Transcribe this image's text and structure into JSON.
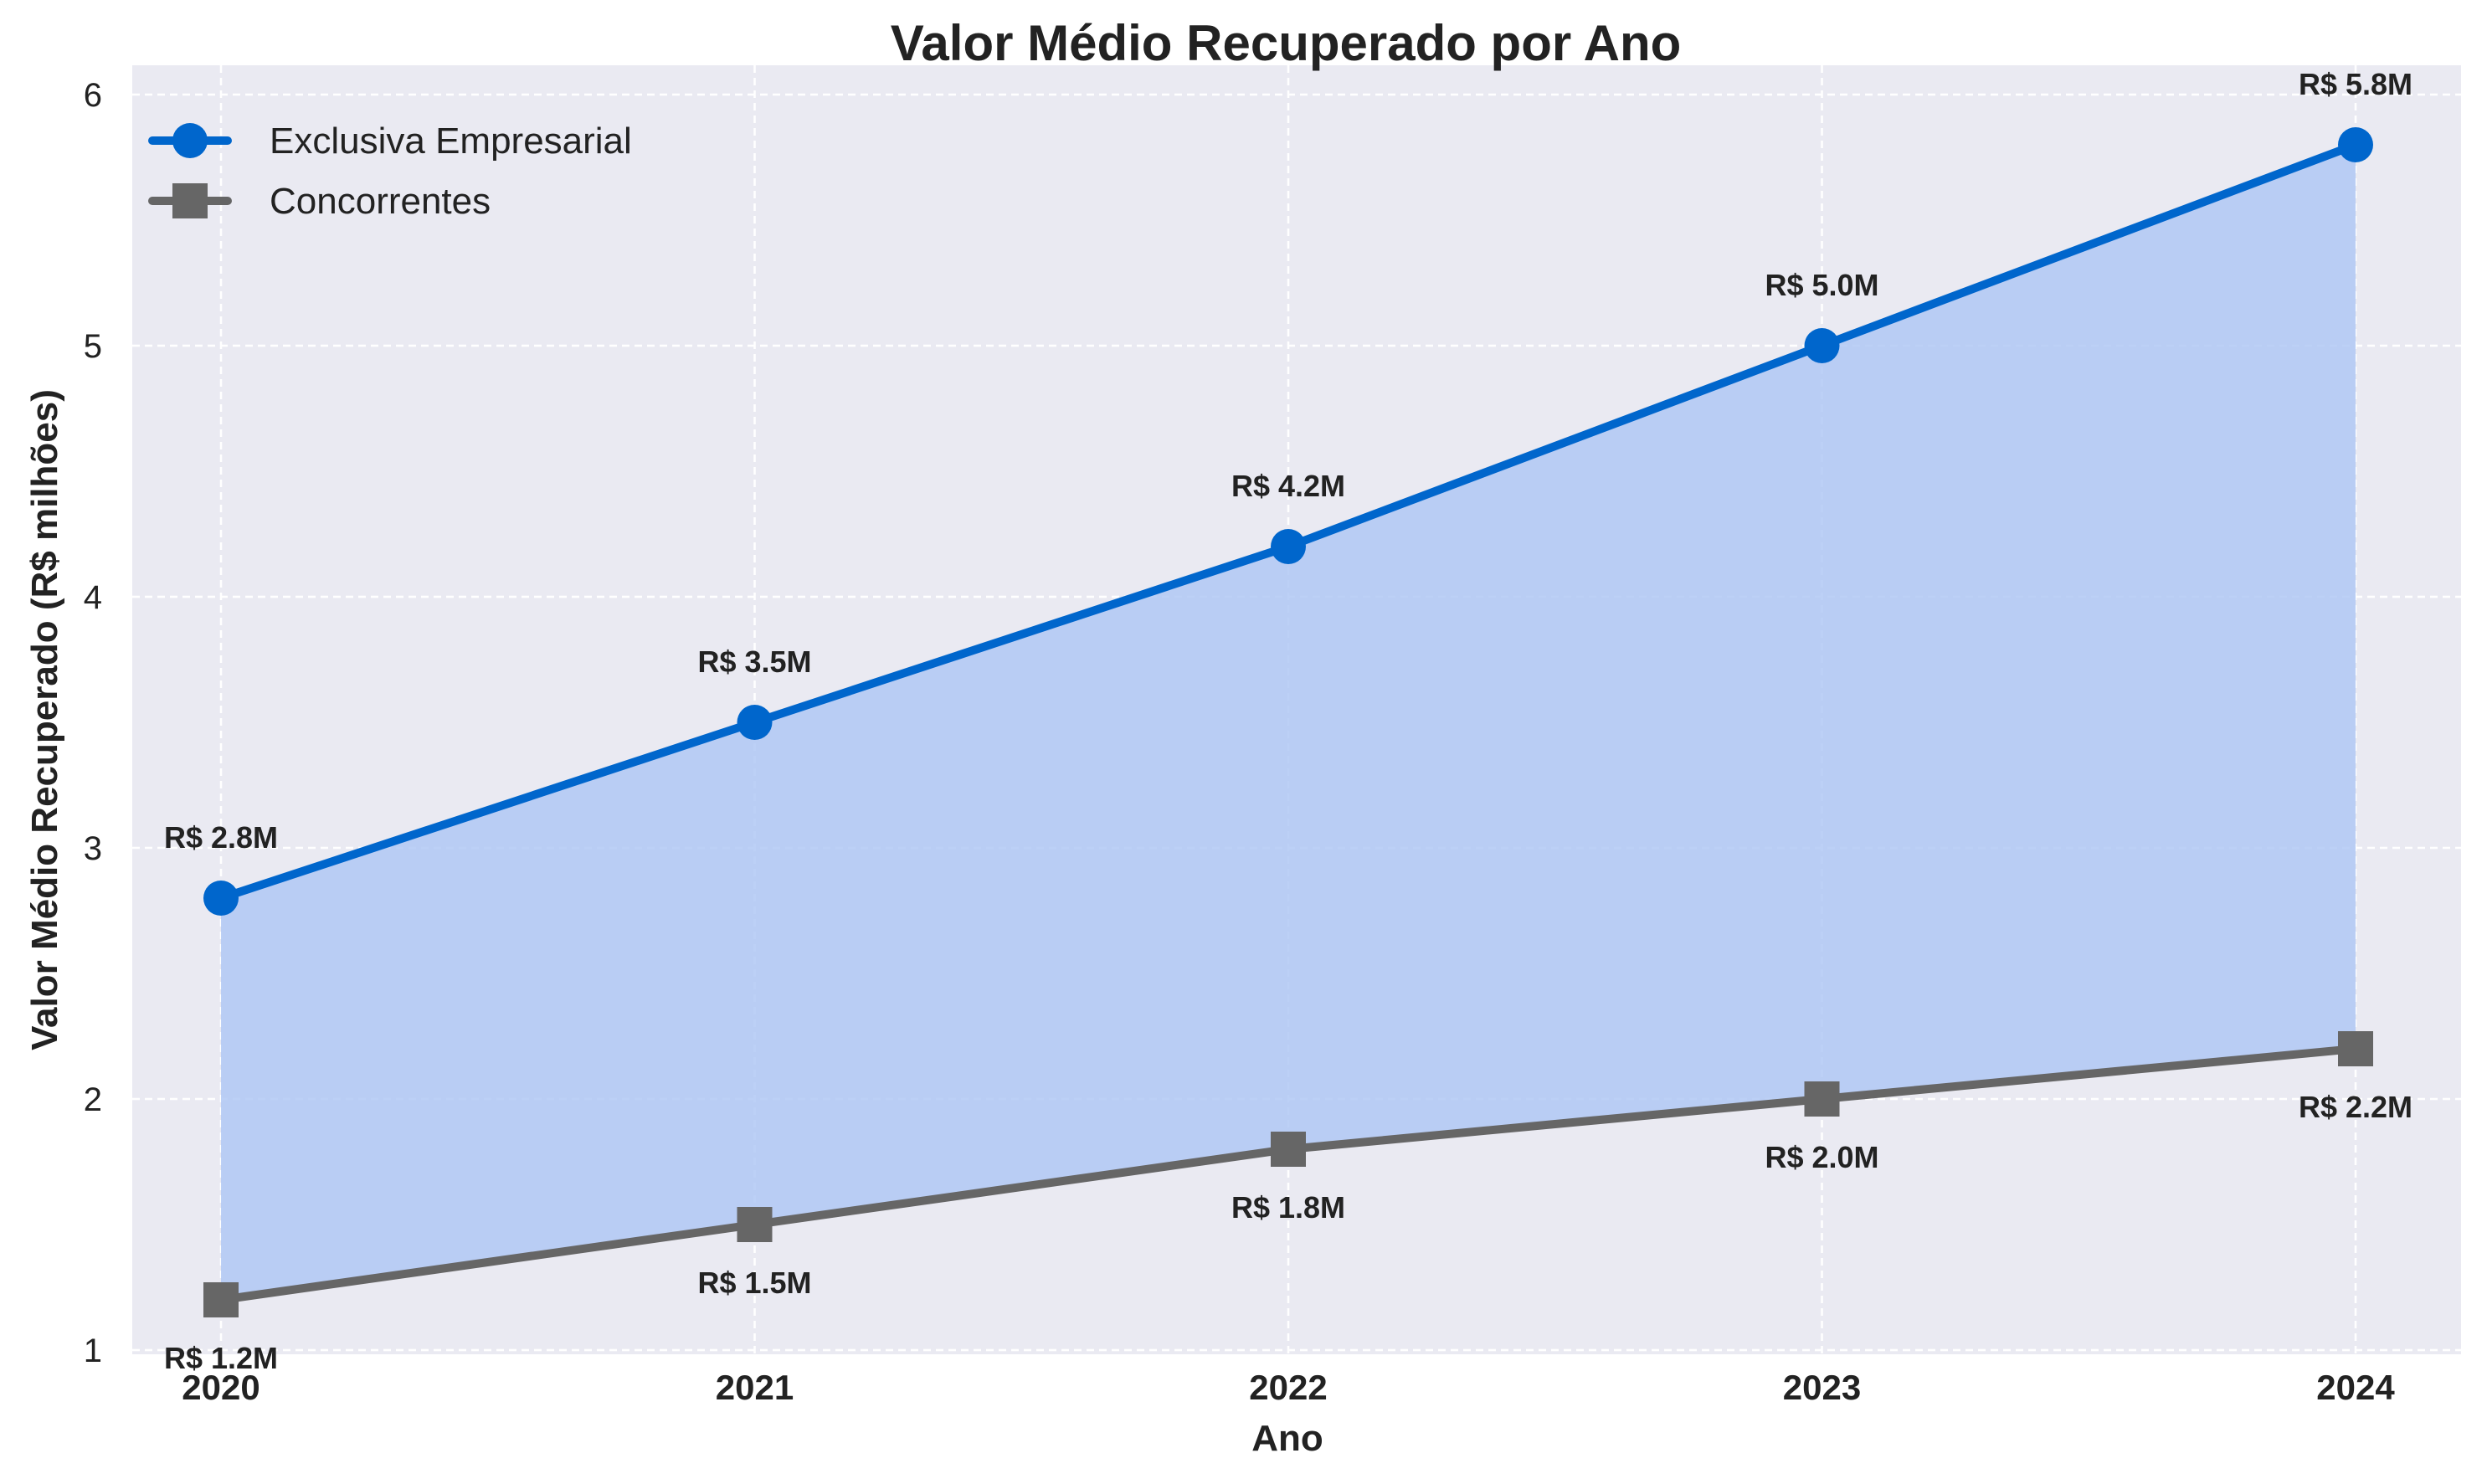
{
  "chart_data": {
    "type": "line",
    "title": "Valor Médio Recuperado por Ano",
    "xlabel": "Ano",
    "ylabel": "Valor Médio Recuperado (R$ milhões)",
    "x": [
      "2020",
      "2021",
      "2022",
      "2023",
      "2024"
    ],
    "ylim": [
      1,
      6
    ],
    "yticks": [
      "1",
      "2",
      "3",
      "4",
      "5",
      "6"
    ],
    "grid": true,
    "legend_position": "top-left",
    "fill_between_series": true,
    "series": [
      {
        "name": "Exclusiva Empresarial",
        "values": [
          2.8,
          3.5,
          4.2,
          5.0,
          5.8
        ],
        "labels": [
          "R$ 2.8M",
          "R$ 3.5M",
          "R$ 4.2M",
          "R$ 5.0M",
          "R$ 5.8M"
        ],
        "label_position": "above",
        "color": "#0066CC",
        "marker": "circle"
      },
      {
        "name": "Concorrentes",
        "values": [
          1.2,
          1.5,
          1.8,
          2.0,
          2.2
        ],
        "labels": [
          "R$ 1.2M",
          "R$ 1.5M",
          "R$ 1.8M",
          "R$ 2.0M",
          "R$ 2.2M"
        ],
        "label_position": "below",
        "color": "#666666",
        "marker": "square"
      }
    ],
    "colors": {
      "plot_background": "#EAEAF2",
      "grid": "#FFFFFF",
      "fill": "#B0C8F5"
    }
  }
}
